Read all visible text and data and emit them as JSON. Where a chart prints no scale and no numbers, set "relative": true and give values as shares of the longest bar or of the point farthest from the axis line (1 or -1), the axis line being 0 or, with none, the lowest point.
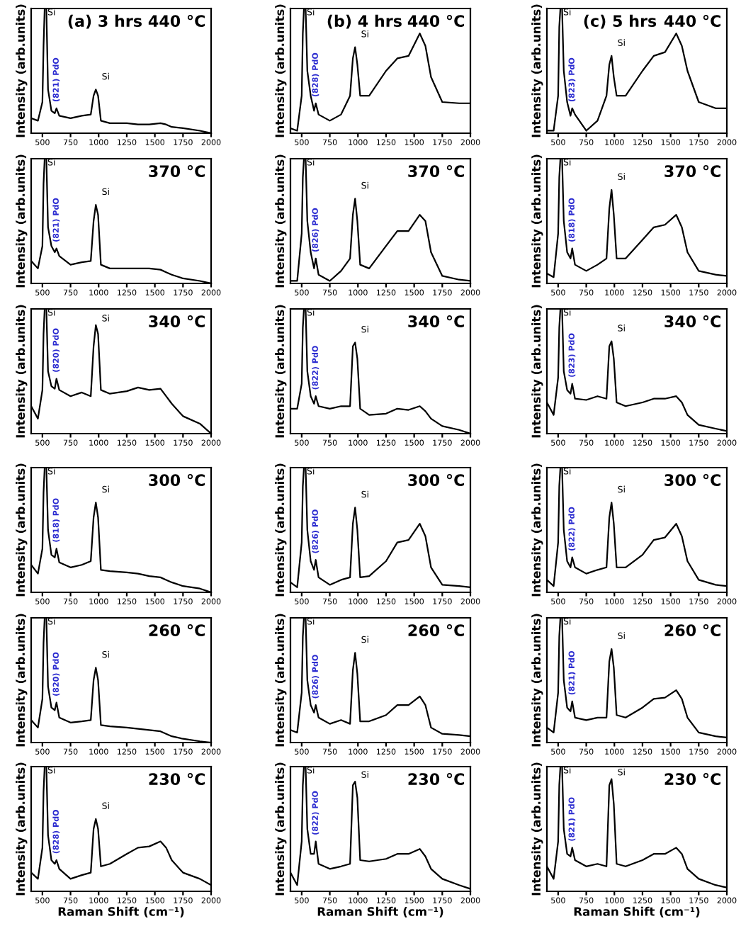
{
  "chart_data": [
    {
      "type": "line",
      "subtitle": "(a) 3 hrs",
      "title": "440 °C",
      "ylabel": "Intensity (arb.units)",
      "tick_labels": "x",
      "relative": true,
      "xlim": [
        400,
        2000
      ],
      "xticks": [
        500,
        750,
        1000,
        1250,
        1500,
        1750,
        2000
      ],
      "color": "#000000",
      "x": [
        400,
        460,
        500,
        510,
        520,
        535,
        550,
        580,
        610,
        625,
        650,
        750,
        850,
        930,
        955,
        975,
        995,
        1020,
        1100,
        1250,
        1350,
        1450,
        1550,
        1600,
        1650,
        1750,
        1900,
        2000
      ],
      "values": [
        0.12,
        0.1,
        0.25,
        0.7,
        1,
        1,
        0.35,
        0.18,
        0.16,
        0.2,
        0.14,
        0.12,
        0.14,
        0.15,
        0.3,
        0.35,
        0.3,
        0.1,
        0.08,
        0.08,
        0.07,
        0.07,
        0.08,
        0.07,
        0.05,
        0.04,
        0.02,
        0
      ],
      "annotations": [
        {
          "text": "Si",
          "x": 545,
          "y": 0.9
        },
        {
          "text": "(821) PdO",
          "x": 625,
          "y": 0.25
        },
        {
          "text": "Si",
          "x": 975,
          "y": 0.4
        }
      ]
    },
    {
      "type": "line",
      "subtitle": "(b) 4 hrs",
      "title": "440 °C",
      "ylabel": "Intensity (arb.units)",
      "tick_labels": "x",
      "relative": true,
      "xlim": [
        400,
        2000
      ],
      "xticks": [
        500,
        750,
        1000,
        1250,
        1500,
        1750,
        2000
      ],
      "color": "#000000",
      "x": [
        400,
        460,
        500,
        510,
        520,
        535,
        550,
        580,
        610,
        625,
        650,
        750,
        850,
        930,
        955,
        975,
        995,
        1020,
        1100,
        1250,
        1350,
        1450,
        1550,
        1600,
        1650,
        1750,
        1900,
        2000
      ],
      "values": [
        0.04,
        0.02,
        0.3,
        0.8,
        1,
        1,
        0.5,
        0.3,
        0.18,
        0.24,
        0.15,
        0.1,
        0.15,
        0.3,
        0.6,
        0.69,
        0.55,
        0.3,
        0.3,
        0.5,
        0.6,
        0.62,
        0.8,
        0.7,
        0.45,
        0.25,
        0.24,
        0.24
      ],
      "annotations": [
        {
          "text": "Si",
          "x": 545,
          "y": 0.9
        },
        {
          "text": "(828) PdO",
          "x": 625,
          "y": 0.29
        },
        {
          "text": "Si",
          "x": 975,
          "y": 0.74
        }
      ]
    },
    {
      "type": "line",
      "subtitle": "(c) 5 hrs",
      "title": "440 °C",
      "ylabel": "Intensity (arb.units)",
      "tick_labels": "x",
      "relative": true,
      "xlim": [
        400,
        2000
      ],
      "xticks": [
        500,
        750,
        1000,
        1250,
        1500,
        1750,
        2000
      ],
      "color": "#000000",
      "x": [
        400,
        460,
        500,
        510,
        520,
        535,
        550,
        580,
        610,
        625,
        650,
        750,
        850,
        930,
        955,
        975,
        995,
        1020,
        1100,
        1250,
        1350,
        1450,
        1550,
        1600,
        1650,
        1750,
        1900,
        2000
      ],
      "values": [
        0.02,
        0.02,
        0.3,
        0.85,
        1,
        1,
        0.5,
        0.25,
        0.14,
        0.2,
        0.15,
        0.02,
        0.1,
        0.3,
        0.55,
        0.62,
        0.45,
        0.3,
        0.3,
        0.5,
        0.62,
        0.65,
        0.8,
        0.7,
        0.5,
        0.25,
        0.2,
        0.2
      ],
      "annotations": [
        {
          "text": "Si",
          "x": 545,
          "y": 0.9
        },
        {
          "text": "(823) PdO",
          "x": 625,
          "y": 0.25
        },
        {
          "text": "Si",
          "x": 975,
          "y": 0.67
        }
      ]
    },
    {
      "type": "line",
      "title": "370 °C",
      "ylabel": "Intensity (arb.units)",
      "tick_labels": "x",
      "relative": true,
      "xlim": [
        400,
        2000
      ],
      "xticks": [
        500,
        750,
        1000,
        1250,
        1500,
        1750,
        2000
      ],
      "color": "#000000",
      "x": [
        400,
        460,
        500,
        510,
        520,
        535,
        550,
        580,
        610,
        625,
        650,
        750,
        850,
        930,
        955,
        975,
        995,
        1020,
        1100,
        1250,
        1350,
        1450,
        1550,
        1600,
        1650,
        1750,
        1900,
        2000
      ],
      "values": [
        0.18,
        0.12,
        0.3,
        0.8,
        1,
        1,
        0.45,
        0.3,
        0.25,
        0.28,
        0.22,
        0.15,
        0.17,
        0.18,
        0.5,
        0.63,
        0.55,
        0.15,
        0.12,
        0.12,
        0.12,
        0.12,
        0.11,
        0.09,
        0.07,
        0.04,
        0.02,
        0
      ],
      "annotations": [
        {
          "text": "Si",
          "x": 545,
          "y": 0.9
        },
        {
          "text": "(821) PdO",
          "x": 625,
          "y": 0.33
        },
        {
          "text": "Si",
          "x": 975,
          "y": 0.68
        }
      ]
    },
    {
      "type": "line",
      "title": "370 °C",
      "ylabel": "Intensity (arb.units)",
      "tick_labels": "x",
      "relative": true,
      "xlim": [
        400,
        2000
      ],
      "xticks": [
        500,
        750,
        1000,
        1250,
        1500,
        1750,
        2000
      ],
      "color": "#000000",
      "x": [
        400,
        460,
        500,
        510,
        520,
        535,
        550,
        580,
        610,
        625,
        650,
        750,
        850,
        930,
        955,
        975,
        995,
        1020,
        1100,
        1250,
        1350,
        1450,
        1550,
        1600,
        1650,
        1750,
        1900,
        2000
      ],
      "values": [
        0.02,
        0.02,
        0.4,
        0.85,
        1,
        1,
        0.5,
        0.25,
        0.12,
        0.2,
        0.07,
        0.02,
        0.1,
        0.2,
        0.55,
        0.68,
        0.5,
        0.15,
        0.12,
        0.3,
        0.42,
        0.42,
        0.55,
        0.5,
        0.25,
        0.06,
        0.03,
        0.02
      ],
      "annotations": [
        {
          "text": "Si",
          "x": 545,
          "y": 0.9
        },
        {
          "text": "(826) PdO",
          "x": 625,
          "y": 0.25
        },
        {
          "text": "Si",
          "x": 975,
          "y": 0.73
        }
      ]
    },
    {
      "type": "line",
      "title": "370 °C",
      "ylabel": "Intensity (arb.units)",
      "tick_labels": "x",
      "relative": true,
      "xlim": [
        400,
        2000
      ],
      "xticks": [
        500,
        750,
        1000,
        1250,
        1500,
        1750,
        2000
      ],
      "color": "#000000",
      "x": [
        400,
        460,
        500,
        510,
        520,
        535,
        550,
        580,
        610,
        625,
        650,
        750,
        850,
        930,
        955,
        975,
        995,
        1020,
        1100,
        1250,
        1350,
        1450,
        1550,
        1600,
        1650,
        1750,
        1900,
        2000
      ],
      "values": [
        0.08,
        0.05,
        0.4,
        0.85,
        1,
        1,
        0.5,
        0.25,
        0.2,
        0.28,
        0.15,
        0.1,
        0.15,
        0.2,
        0.6,
        0.75,
        0.55,
        0.2,
        0.2,
        0.35,
        0.45,
        0.47,
        0.55,
        0.45,
        0.25,
        0.1,
        0.07,
        0.06
      ],
      "annotations": [
        {
          "text": "Si",
          "x": 545,
          "y": 0.9
        },
        {
          "text": "(818) PdO",
          "x": 625,
          "y": 0.33
        },
        {
          "text": "Si",
          "x": 975,
          "y": 0.8
        }
      ]
    },
    {
      "type": "line",
      "title": "340 °C",
      "ylabel": "Intensity (arb.units)",
      "tick_labels": "x",
      "relative": true,
      "xlim": [
        400,
        2000
      ],
      "xticks": [
        500,
        750,
        1000,
        1250,
        1500,
        1750,
        2000
      ],
      "color": "#000000",
      "x": [
        400,
        460,
        500,
        510,
        520,
        535,
        550,
        580,
        610,
        625,
        650,
        750,
        850,
        930,
        955,
        975,
        995,
        1020,
        1100,
        1250,
        1350,
        1450,
        1550,
        1600,
        1650,
        1750,
        1900,
        2000
      ],
      "values": [
        0.22,
        0.12,
        0.35,
        0.8,
        1,
        1,
        0.5,
        0.38,
        0.36,
        0.44,
        0.35,
        0.3,
        0.33,
        0.3,
        0.7,
        0.87,
        0.8,
        0.35,
        0.32,
        0.34,
        0.37,
        0.35,
        0.36,
        0.3,
        0.24,
        0.14,
        0.08,
        0
      ],
      "annotations": [
        {
          "text": "Si",
          "x": 545,
          "y": 0.9
        },
        {
          "text": "(820) PdO",
          "x": 625,
          "y": 0.49
        },
        {
          "text": "Si",
          "x": 975,
          "y": 0.87
        }
      ]
    },
    {
      "type": "line",
      "title": "340 °C",
      "ylabel": "Intensity (arb.units)",
      "tick_labels": "x",
      "relative": true,
      "xlim": [
        400,
        2000
      ],
      "xticks": [
        500,
        750,
        1000,
        1250,
        1500,
        1750,
        2000
      ],
      "color": "#000000",
      "x": [
        400,
        460,
        500,
        510,
        520,
        535,
        550,
        580,
        610,
        625,
        650,
        750,
        850,
        930,
        955,
        975,
        995,
        1020,
        1100,
        1250,
        1350,
        1450,
        1550,
        1600,
        1650,
        1750,
        1900,
        2000
      ],
      "values": [
        0.2,
        0.2,
        0.4,
        0.85,
        1,
        1,
        0.5,
        0.3,
        0.24,
        0.3,
        0.22,
        0.2,
        0.22,
        0.22,
        0.7,
        0.73,
        0.6,
        0.2,
        0.15,
        0.16,
        0.2,
        0.19,
        0.22,
        0.18,
        0.12,
        0.06,
        0.03,
        0
      ],
      "annotations": [
        {
          "text": "Si",
          "x": 545,
          "y": 0.9
        },
        {
          "text": "(822) PdO",
          "x": 625,
          "y": 0.35
        },
        {
          "text": "Si",
          "x": 975,
          "y": 0.78
        }
      ]
    },
    {
      "type": "line",
      "title": "340 °C",
      "ylabel": "Intensity (arb.units)",
      "tick_labels": "x",
      "relative": true,
      "xlim": [
        400,
        2000
      ],
      "xticks": [
        500,
        750,
        1000,
        1250,
        1500,
        1750,
        2000
      ],
      "color": "#000000",
      "x": [
        400,
        460,
        500,
        510,
        520,
        535,
        550,
        580,
        610,
        625,
        650,
        750,
        850,
        930,
        955,
        975,
        995,
        1020,
        1100,
        1250,
        1350,
        1450,
        1550,
        1600,
        1650,
        1750,
        1900,
        2000
      ],
      "values": [
        0.25,
        0.15,
        0.45,
        0.85,
        1,
        1,
        0.5,
        0.35,
        0.32,
        0.4,
        0.28,
        0.27,
        0.3,
        0.28,
        0.7,
        0.74,
        0.6,
        0.25,
        0.22,
        0.25,
        0.28,
        0.28,
        0.3,
        0.25,
        0.15,
        0.07,
        0.04,
        0.02
      ],
      "annotations": [
        {
          "text": "Si",
          "x": 545,
          "y": 0.9
        },
        {
          "text": "(823) PdO",
          "x": 625,
          "y": 0.45
        },
        {
          "text": "Si",
          "x": 975,
          "y": 0.79
        }
      ]
    },
    {
      "type": "line",
      "title": "300 °C",
      "ylabel": "Intensity (arb.units)",
      "tick_labels": "x",
      "relative": true,
      "xlim": [
        400,
        2000
      ],
      "xticks": [
        500,
        750,
        1000,
        1250,
        1500,
        1750,
        2000
      ],
      "color": "#000000",
      "x": [
        400,
        460,
        500,
        510,
        520,
        535,
        550,
        580,
        610,
        625,
        650,
        750,
        850,
        930,
        955,
        975,
        995,
        1020,
        1100,
        1250,
        1350,
        1450,
        1550,
        1600,
        1650,
        1750,
        1900,
        2000
      ],
      "values": [
        0.22,
        0.15,
        0.35,
        0.8,
        1,
        1,
        0.5,
        0.3,
        0.28,
        0.35,
        0.24,
        0.2,
        0.22,
        0.25,
        0.6,
        0.72,
        0.6,
        0.18,
        0.17,
        0.16,
        0.15,
        0.13,
        0.12,
        0.1,
        0.08,
        0.05,
        0.03,
        0
      ],
      "annotations": [
        {
          "text": "Si",
          "x": 545,
          "y": 0.9
        },
        {
          "text": "(818) PdO",
          "x": 625,
          "y": 0.4
        },
        {
          "text": "Si",
          "x": 975,
          "y": 0.77
        }
      ]
    },
    {
      "type": "line",
      "title": "300 °C",
      "ylabel": "Intensity (arb.units)",
      "tick_labels": "x",
      "relative": true,
      "xlim": [
        400,
        2000
      ],
      "xticks": [
        500,
        750,
        1000,
        1250,
        1500,
        1750,
        2000
      ],
      "color": "#000000",
      "x": [
        400,
        460,
        500,
        510,
        520,
        535,
        550,
        580,
        610,
        625,
        650,
        750,
        850,
        930,
        955,
        975,
        995,
        1020,
        1100,
        1250,
        1350,
        1450,
        1550,
        1600,
        1650,
        1750,
        1900,
        2000
      ],
      "values": [
        0.08,
        0.04,
        0.4,
        0.85,
        1,
        1,
        0.5,
        0.25,
        0.18,
        0.26,
        0.12,
        0.06,
        0.1,
        0.12,
        0.55,
        0.68,
        0.5,
        0.12,
        0.13,
        0.25,
        0.4,
        0.42,
        0.55,
        0.45,
        0.2,
        0.06,
        0.05,
        0.04
      ],
      "annotations": [
        {
          "text": "Si",
          "x": 545,
          "y": 0.9
        },
        {
          "text": "(826) PdO",
          "x": 625,
          "y": 0.31
        },
        {
          "text": "Si",
          "x": 975,
          "y": 0.73
        }
      ]
    },
    {
      "type": "line",
      "title": "300 °C",
      "ylabel": "Intensity (arb.units)",
      "tick_labels": "x",
      "relative": true,
      "xlim": [
        400,
        2000
      ],
      "xticks": [
        500,
        750,
        1000,
        1250,
        1500,
        1750,
        2000
      ],
      "color": "#000000",
      "x": [
        400,
        460,
        500,
        510,
        520,
        535,
        550,
        580,
        610,
        625,
        650,
        750,
        850,
        930,
        955,
        975,
        995,
        1020,
        1100,
        1250,
        1350,
        1450,
        1550,
        1600,
        1650,
        1750,
        1900,
        2000
      ],
      "values": [
        0.1,
        0.05,
        0.4,
        0.85,
        1,
        1,
        0.5,
        0.25,
        0.2,
        0.28,
        0.2,
        0.15,
        0.18,
        0.2,
        0.6,
        0.72,
        0.55,
        0.2,
        0.2,
        0.3,
        0.42,
        0.44,
        0.55,
        0.45,
        0.25,
        0.1,
        0.06,
        0.05
      ],
      "annotations": [
        {
          "text": "Si",
          "x": 545,
          "y": 0.9
        },
        {
          "text": "(822) PdO",
          "x": 625,
          "y": 0.33
        },
        {
          "text": "Si",
          "x": 975,
          "y": 0.77
        }
      ]
    },
    {
      "type": "line",
      "title": "260 °C",
      "ylabel": "Intensity (arb.units)",
      "tick_labels": "x",
      "relative": true,
      "xlim": [
        400,
        2000
      ],
      "xticks": [
        500,
        750,
        1000,
        1250,
        1500,
        1750,
        2000
      ],
      "color": "#000000",
      "x": [
        400,
        460,
        500,
        510,
        520,
        535,
        550,
        580,
        610,
        625,
        650,
        750,
        850,
        930,
        955,
        975,
        995,
        1020,
        1100,
        1250,
        1350,
        1450,
        1550,
        1600,
        1650,
        1750,
        1900,
        2000
      ],
      "values": [
        0.18,
        0.12,
        0.35,
        0.8,
        1,
        1,
        0.45,
        0.28,
        0.26,
        0.32,
        0.2,
        0.16,
        0.17,
        0.18,
        0.5,
        0.6,
        0.5,
        0.14,
        0.13,
        0.12,
        0.11,
        0.1,
        0.09,
        0.07,
        0.05,
        0.03,
        0.01,
        0
      ],
      "annotations": [
        {
          "text": "Si",
          "x": 545,
          "y": 0.9
        },
        {
          "text": "(820) PdO",
          "x": 625,
          "y": 0.37
        },
        {
          "text": "Si",
          "x": 975,
          "y": 0.65
        }
      ]
    },
    {
      "type": "line",
      "title": "260 °C",
      "ylabel": "Intensity (arb.units)",
      "tick_labels": "x",
      "relative": true,
      "xlim": [
        400,
        2000
      ],
      "xticks": [
        500,
        750,
        1000,
        1250,
        1500,
        1750,
        2000
      ],
      "color": "#000000",
      "x": [
        400,
        460,
        500,
        510,
        520,
        535,
        550,
        580,
        610,
        625,
        650,
        750,
        850,
        930,
        955,
        975,
        995,
        1020,
        1100,
        1250,
        1350,
        1450,
        1550,
        1600,
        1650,
        1750,
        1900,
        2000
      ],
      "values": [
        0.1,
        0.08,
        0.4,
        0.85,
        1,
        1,
        0.5,
        0.3,
        0.24,
        0.3,
        0.2,
        0.15,
        0.18,
        0.15,
        0.58,
        0.72,
        0.55,
        0.17,
        0.17,
        0.22,
        0.3,
        0.3,
        0.37,
        0.3,
        0.12,
        0.07,
        0.06,
        0.05
      ],
      "annotations": [
        {
          "text": "Si",
          "x": 545,
          "y": 0.9
        },
        {
          "text": "(826) PdO",
          "x": 625,
          "y": 0.35
        },
        {
          "text": "Si",
          "x": 975,
          "y": 0.77
        }
      ]
    },
    {
      "type": "line",
      "title": "260 °C",
      "ylabel": "Intensity (arb.units)",
      "tick_labels": "x",
      "relative": true,
      "xlim": [
        400,
        2000
      ],
      "xticks": [
        500,
        750,
        1000,
        1250,
        1500,
        1750,
        2000
      ],
      "color": "#000000",
      "x": [
        400,
        460,
        500,
        510,
        520,
        535,
        550,
        580,
        610,
        625,
        650,
        750,
        850,
        930,
        955,
        975,
        995,
        1020,
        1100,
        1250,
        1350,
        1450,
        1550,
        1600,
        1650,
        1750,
        1900,
        2000
      ],
      "values": [
        0.12,
        0.08,
        0.4,
        0.85,
        1,
        1,
        0.5,
        0.28,
        0.25,
        0.33,
        0.2,
        0.18,
        0.2,
        0.2,
        0.65,
        0.75,
        0.6,
        0.22,
        0.2,
        0.28,
        0.35,
        0.36,
        0.42,
        0.35,
        0.2,
        0.08,
        0.05,
        0.04
      ],
      "annotations": [
        {
          "text": "Si",
          "x": 545,
          "y": 0.9
        },
        {
          "text": "(821) PdO",
          "x": 625,
          "y": 0.38
        },
        {
          "text": "Si",
          "x": 975,
          "y": 0.8
        }
      ]
    },
    {
      "type": "line",
      "title": "230 °C",
      "xlabel": "Raman Shift (cm⁻¹)",
      "ylabel": "Intensity (arb.units)",
      "tick_labels": "x",
      "relative": true,
      "xlim": [
        400,
        2000
      ],
      "xticks": [
        500,
        750,
        1000,
        1250,
        1500,
        1750,
        2000
      ],
      "color": "#000000",
      "x": [
        400,
        460,
        500,
        510,
        520,
        535,
        550,
        580,
        610,
        625,
        650,
        750,
        850,
        930,
        955,
        975,
        995,
        1020,
        1100,
        1250,
        1350,
        1450,
        1550,
        1600,
        1650,
        1750,
        1900,
        2000
      ],
      "values": [
        0.15,
        0.1,
        0.35,
        0.8,
        1,
        1,
        0.45,
        0.25,
        0.22,
        0.25,
        0.18,
        0.1,
        0.13,
        0.15,
        0.5,
        0.58,
        0.5,
        0.2,
        0.22,
        0.3,
        0.35,
        0.36,
        0.4,
        0.35,
        0.25,
        0.15,
        0.1,
        0.05
      ],
      "annotations": [
        {
          "text": "Si",
          "x": 545,
          "y": 0.9
        },
        {
          "text": "(828) PdO",
          "x": 625,
          "y": 0.3
        },
        {
          "text": "Si",
          "x": 975,
          "y": 0.63
        }
      ]
    },
    {
      "type": "line",
      "title": "230 °C",
      "xlabel": "Raman Shift (cm⁻¹)",
      "ylabel": "Intensity (arb.units)",
      "tick_labels": "x",
      "relative": true,
      "xlim": [
        400,
        2000
      ],
      "xticks": [
        500,
        750,
        1000,
        1250,
        1500,
        1750,
        2000
      ],
      "color": "#000000",
      "x": [
        400,
        460,
        500,
        510,
        520,
        535,
        550,
        580,
        610,
        625,
        650,
        750,
        850,
        930,
        955,
        975,
        995,
        1020,
        1100,
        1250,
        1350,
        1450,
        1550,
        1600,
        1650,
        1750,
        1900,
        2000
      ],
      "values": [
        0.15,
        0.05,
        0.4,
        0.85,
        1,
        1,
        0.5,
        0.3,
        0.3,
        0.4,
        0.22,
        0.18,
        0.2,
        0.22,
        0.85,
        0.88,
        0.75,
        0.25,
        0.24,
        0.26,
        0.3,
        0.3,
        0.34,
        0.28,
        0.18,
        0.1,
        0.05,
        0.02
      ],
      "annotations": [
        {
          "text": "Si",
          "x": 545,
          "y": 0.9
        },
        {
          "text": "(822) PdO",
          "x": 625,
          "y": 0.45
        },
        {
          "text": "Si",
          "x": 975,
          "y": 0.88
        }
      ]
    },
    {
      "type": "line",
      "title": "230 °C",
      "xlabel": "Raman Shift (cm⁻¹)",
      "ylabel": "Intensity (arb.units)",
      "tick_labels": "x",
      "relative": true,
      "xlim": [
        400,
        2000
      ],
      "xticks": [
        500,
        750,
        1000,
        1250,
        1500,
        1750,
        2000
      ],
      "color": "#000000",
      "x": [
        400,
        460,
        500,
        510,
        520,
        535,
        550,
        580,
        610,
        625,
        650,
        750,
        850,
        930,
        955,
        975,
        995,
        1020,
        1100,
        1250,
        1350,
        1450,
        1550,
        1600,
        1650,
        1750,
        1900,
        2000
      ],
      "values": [
        0.2,
        0.1,
        0.4,
        0.85,
        1,
        1,
        0.5,
        0.3,
        0.28,
        0.35,
        0.25,
        0.2,
        0.22,
        0.2,
        0.85,
        0.9,
        0.7,
        0.22,
        0.2,
        0.25,
        0.3,
        0.3,
        0.35,
        0.3,
        0.18,
        0.1,
        0.05,
        0.03
      ],
      "annotations": [
        {
          "text": "Si",
          "x": 545,
          "y": 0.9
        },
        {
          "text": "(821) PdO",
          "x": 625,
          "y": 0.4
        },
        {
          "text": "Si",
          "x": 975,
          "y": 0.9
        }
      ]
    }
  ]
}
